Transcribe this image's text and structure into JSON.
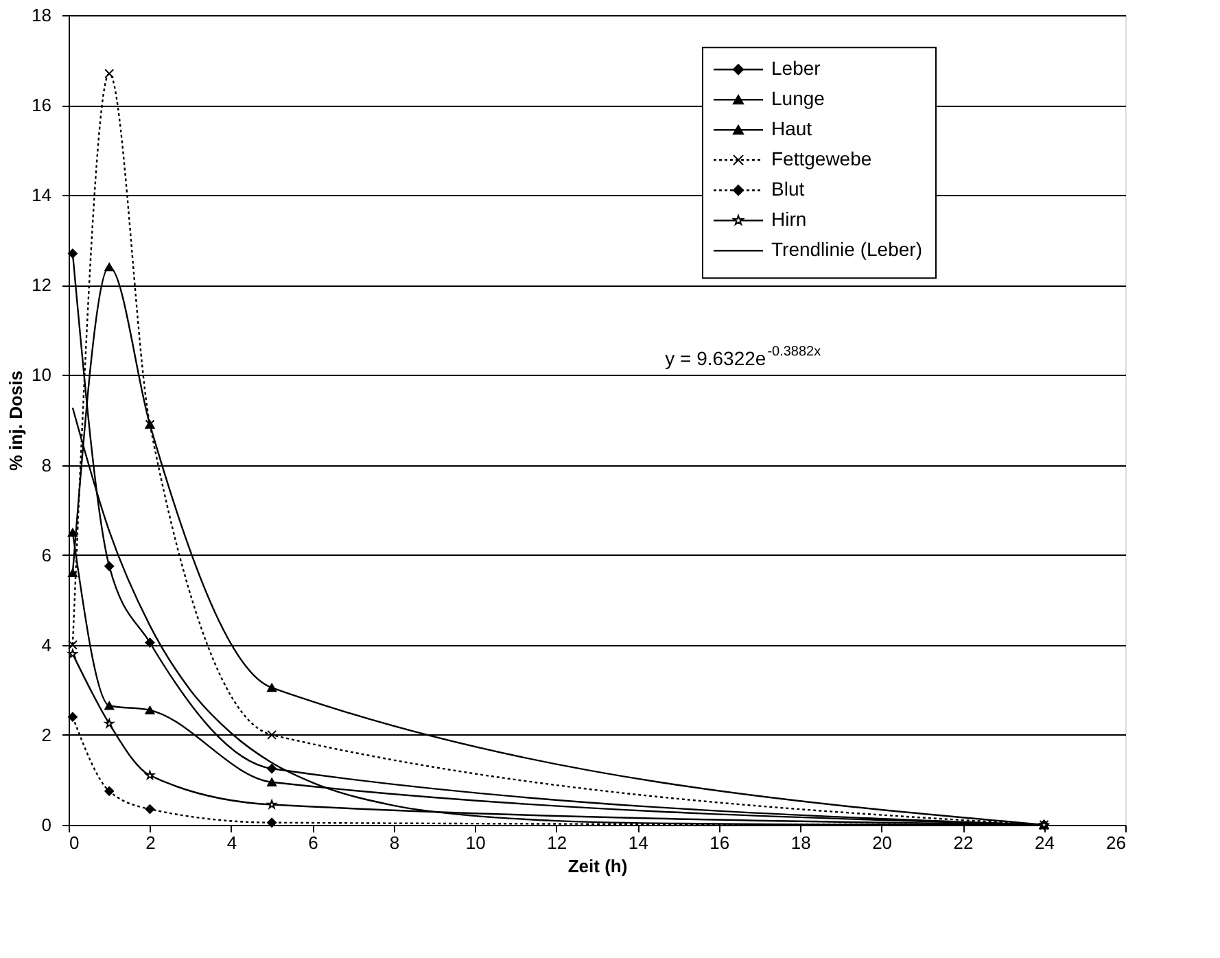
{
  "chart_data": {
    "type": "line",
    "xlabel": "Zeit (h)",
    "ylabel": "% inj. Dosis",
    "x": [
      0.1,
      1,
      2,
      5,
      24
    ],
    "xlim": [
      0,
      26
    ],
    "xticks": [
      0,
      2,
      4,
      6,
      8,
      10,
      12,
      14,
      16,
      18,
      20,
      22,
      24,
      26
    ],
    "ylim": [
      0,
      18
    ],
    "yticks": [
      0,
      2,
      4,
      6,
      8,
      10,
      12,
      14,
      16,
      18
    ],
    "grid": "y",
    "legend": "top right",
    "series": [
      {
        "name": "Leber",
        "color": "#000000",
        "marker": "diamond",
        "line_style": "solid",
        "values": [
          12.7,
          5.75,
          4.05,
          1.25,
          0
        ]
      },
      {
        "name": "Lunge",
        "color": "#000000",
        "marker": "triangle",
        "line_style": "solid",
        "values": [
          6.5,
          2.65,
          2.55,
          0.95,
          0
        ]
      },
      {
        "name": "Haut",
        "color": "#000000",
        "marker": "triangle",
        "line_style": "solid",
        "values": [
          5.6,
          12.4,
          8.9,
          3.05,
          0
        ]
      },
      {
        "name": "Fettgewebe",
        "color": "#000000",
        "marker": "cross",
        "line_style": "dotted",
        "values": [
          4.0,
          16.7,
          8.9,
          2.0,
          0
        ]
      },
      {
        "name": "Blut",
        "color": "#000000",
        "marker": "diamond",
        "line_style": "dotted",
        "values": [
          2.4,
          0.75,
          0.35,
          0.05,
          0
        ]
      },
      {
        "name": "Hirn",
        "color": "#000000",
        "marker": "star",
        "line_style": "solid",
        "values": [
          3.8,
          2.25,
          1.1,
          0.45,
          0
        ]
      },
      {
        "name": "Trendlinie (Leber)",
        "color": "#000000",
        "marker": "none",
        "line_style": "solid",
        "x": [
          0.1,
          1,
          2,
          3,
          4,
          5,
          6,
          8,
          10,
          12,
          15,
          18,
          21,
          24
        ],
        "values": [
          9.27,
          6.53,
          4.43,
          2.99,
          2.04,
          1.38,
          0.94,
          0.43,
          0.2,
          0.09,
          0.03,
          0.01,
          0.0,
          0.0
        ]
      }
    ],
    "annotations": [
      "y = 9.6322e$^{-0.3882x}$"
    ]
  }
}
